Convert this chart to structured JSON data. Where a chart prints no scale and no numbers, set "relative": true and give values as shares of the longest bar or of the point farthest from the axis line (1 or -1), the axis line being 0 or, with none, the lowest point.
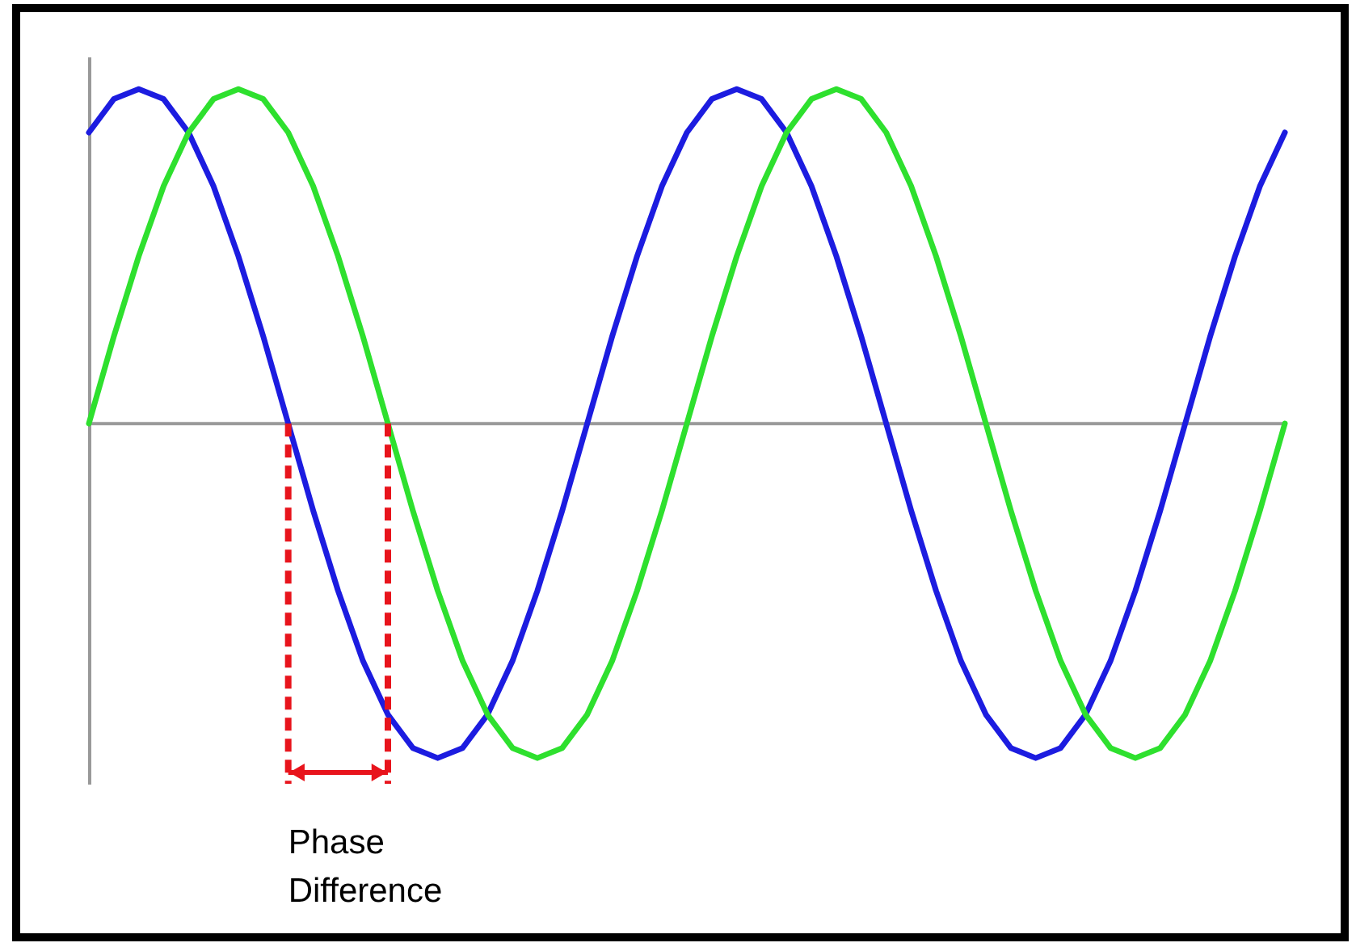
{
  "chart_data": {
    "type": "line",
    "relative": true,
    "categories": [
      null,
      null,
      null,
      null,
      null,
      null,
      null,
      null,
      null,
      null,
      null,
      null,
      null,
      null,
      null,
      null,
      null,
      null,
      null,
      null,
      null,
      null,
      null,
      null,
      null,
      null,
      null,
      null,
      null,
      null,
      null,
      null,
      null,
      null,
      null,
      null,
      null,
      null,
      null,
      null,
      null,
      null,
      null,
      null,
      null,
      null,
      null,
      null,
      null
    ],
    "series": [
      {
        "color": "#1c1ce0",
        "values": [
          0.87,
          0.97,
          1,
          0.97,
          0.87,
          0.71,
          0.5,
          0.26,
          0,
          -0.26,
          -0.5,
          -0.71,
          -0.87,
          -0.97,
          -1,
          -0.97,
          -0.87,
          -0.71,
          -0.5,
          -0.26,
          0,
          0.26,
          0.5,
          0.71,
          0.87,
          0.97,
          1,
          0.97,
          0.87,
          0.71,
          0.5,
          0.26,
          0,
          -0.26,
          -0.5,
          -0.71,
          -0.87,
          -0.97,
          -1,
          -0.97,
          -0.87,
          -0.71,
          -0.5,
          -0.26,
          0,
          0.26,
          0.5,
          0.71,
          0.87
        ]
      },
      {
        "color": "#2ee02e",
        "values": [
          0,
          0.26,
          0.5,
          0.71,
          0.87,
          0.97,
          1,
          0.97,
          0.87,
          0.71,
          0.5,
          0.26,
          0,
          -0.26,
          -0.5,
          -0.71,
          -0.87,
          -0.97,
          -1,
          -0.97,
          -0.87,
          -0.71,
          -0.5,
          -0.26,
          0,
          0.26,
          0.5,
          0.71,
          0.87,
          0.97,
          1,
          0.97,
          0.87,
          0.71,
          0.5,
          0.26,
          0,
          -0.26,
          -0.5,
          -0.71,
          -0.87,
          -0.97,
          -1,
          -0.97,
          -0.87,
          -0.71,
          -0.5,
          -0.26,
          0
        ]
      }
    ],
    "annotations": [
      "Phase Difference"
    ],
    "grid": false,
    "marker": "none",
    "line_style": "solid",
    "tick_labels": false
  }
}
